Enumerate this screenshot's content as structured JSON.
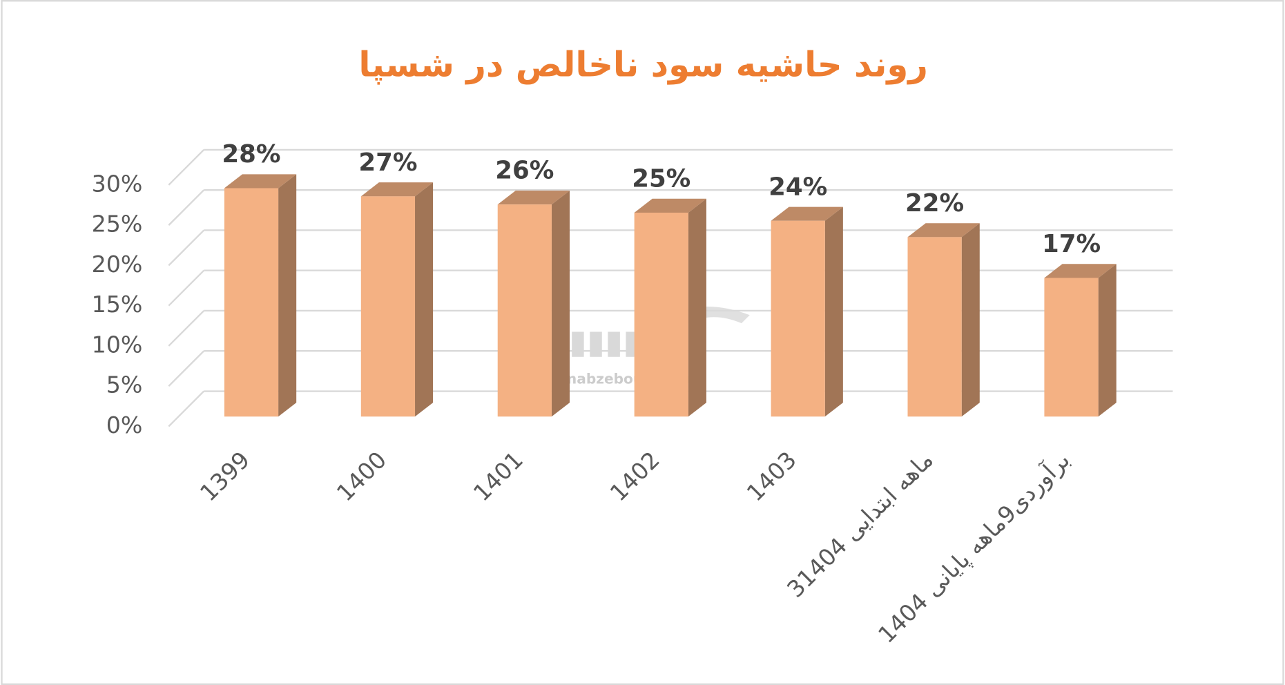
{
  "chart_data": {
    "type": "bar3d",
    "title": "روند حاشیه سود ناخالص در شسپا",
    "watermark": "nabzebourse.com",
    "categories": [
      "1399",
      "1400",
      "1401",
      "1402",
      "1403",
      "3ماهه ابتدایی 1404",
      "برآوردی9ماهه پایانی 1404"
    ],
    "values": [
      28,
      27,
      26,
      25,
      24,
      22,
      17
    ],
    "value_labels": [
      "28%",
      "27%",
      "26%",
      "25%",
      "24%",
      "22%",
      "17%"
    ],
    "color": "#f4b183",
    "ylim": [
      0,
      30
    ],
    "yticks": [
      {
        "value": 0,
        "label": "0%"
      },
      {
        "value": 5,
        "label": "5%"
      },
      {
        "value": 10,
        "label": "10%"
      },
      {
        "value": 15,
        "label": "15%"
      },
      {
        "value": 20,
        "label": "20%"
      },
      {
        "value": 25,
        "label": "25%"
      },
      {
        "value": 30,
        "label": "30%"
      }
    ],
    "grid": true
  }
}
